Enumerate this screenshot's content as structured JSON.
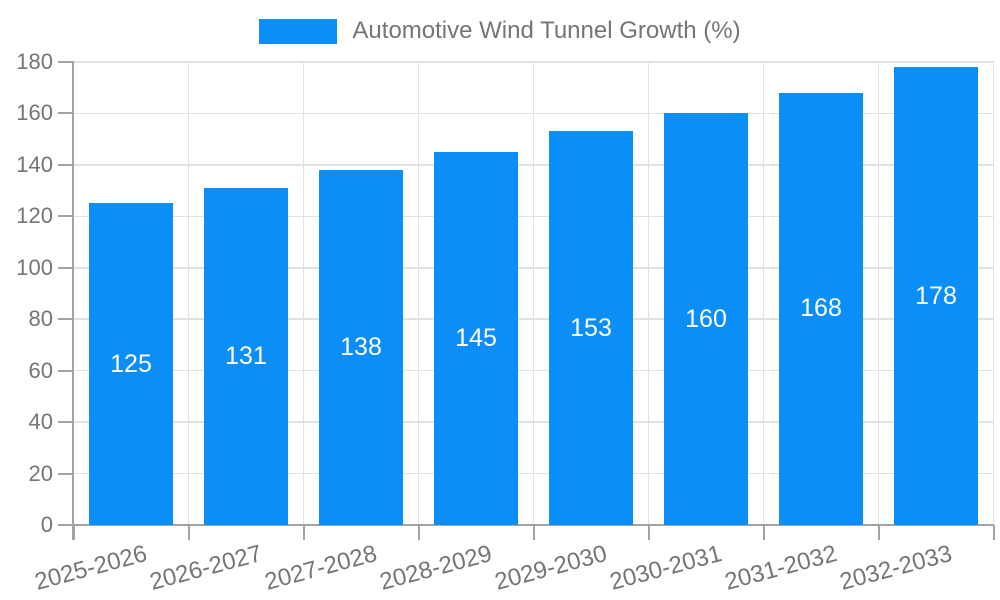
{
  "legend": {
    "label": "Automotive Wind Tunnel Growth (%)"
  },
  "chart_data": {
    "type": "bar",
    "title": "Automotive Wind Tunnel Growth (%)",
    "series_name": "Automotive Wind Tunnel Growth (%)",
    "categories": [
      "2025-2026",
      "2026-2027",
      "2027-2028",
      "2028-2029",
      "2029-2030",
      "2030-2031",
      "2031-2032",
      "2032-2033"
    ],
    "values": [
      125,
      131,
      138,
      145,
      153,
      160,
      168,
      178
    ],
    "xlabel": "",
    "ylabel": "",
    "ylim": [
      0,
      180
    ],
    "ytick_step": 20,
    "yticks": [
      0,
      20,
      40,
      60,
      80,
      100,
      120,
      140,
      160,
      180
    ],
    "grid": true,
    "legend_position": "top-center",
    "x_label_rotation_deg": 15,
    "colors": {
      "bar": "#0b8ef8",
      "value_label": "#ffffff",
      "grid": "#e2e2e2",
      "axis": "#a3a3a3",
      "tick_label": "#757575",
      "legend_text": "#757575"
    }
  }
}
